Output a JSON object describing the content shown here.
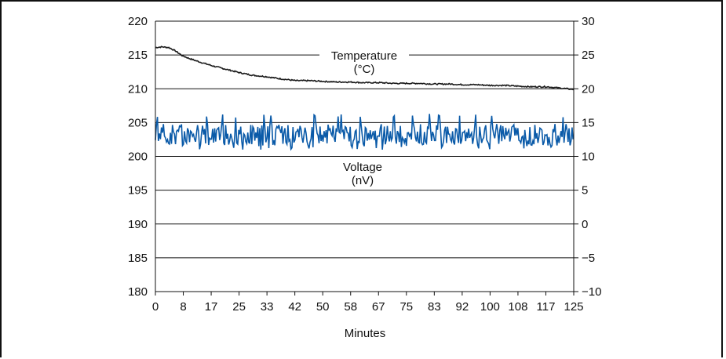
{
  "chart_data": {
    "type": "line",
    "xlabel": "Minutes",
    "x_ticks": [
      "0",
      "8",
      "17",
      "25",
      "33",
      "42",
      "50",
      "58",
      "67",
      "75",
      "83",
      "92",
      "100",
      "108",
      "117",
      "125"
    ],
    "xlim": [
      0,
      125
    ],
    "y_left": {
      "ylim": [
        180,
        220
      ],
      "ticks": [
        "180",
        "185",
        "190",
        "195",
        "200",
        "205",
        "210",
        "215",
        "220"
      ]
    },
    "y_right": {
      "ylim": [
        -10,
        30
      ],
      "ticks": [
        "−10",
        "−5",
        "0",
        "5",
        "10",
        "15",
        "20",
        "25",
        "30"
      ]
    },
    "grid": "horizontal",
    "series": [
      {
        "name": "Temperature",
        "unit": "(°C)",
        "axis": "right",
        "color": "#1a1a1a",
        "x": [
          0,
          2,
          4,
          6,
          8,
          10,
          13,
          17,
          21,
          25,
          29,
          33,
          37,
          42,
          46,
          50,
          54,
          58,
          62,
          67,
          71,
          75,
          79,
          83,
          88,
          92,
          96,
          100,
          104,
          108,
          112,
          117,
          121,
          125
        ],
        "y": [
          26.1,
          26.2,
          26.1,
          25.6,
          24.9,
          24.5,
          24.0,
          23.4,
          22.9,
          22.4,
          22.0,
          21.8,
          21.5,
          21.2,
          21.2,
          21.1,
          21.0,
          21.0,
          20.9,
          20.9,
          20.8,
          20.8,
          20.8,
          20.7,
          20.7,
          20.6,
          20.6,
          20.5,
          20.5,
          20.4,
          20.3,
          20.3,
          20.1,
          19.9
        ]
      },
      {
        "name": "Voltage",
        "unit": "(nV)",
        "axis": "right",
        "color": "#0a5aa8",
        "baseline": 13.2,
        "range": [
          11.0,
          16.3
        ]
      }
    ]
  }
}
